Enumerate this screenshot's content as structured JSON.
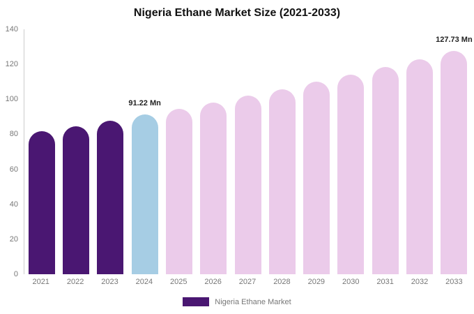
{
  "chart_data": {
    "type": "bar",
    "title": "Nigeria Ethane Market Size (2021-2033)",
    "categories": [
      "2021",
      "2022",
      "2023",
      "2024",
      "2025",
      "2026",
      "2027",
      "2028",
      "2029",
      "2030",
      "2031",
      "2032",
      "2033"
    ],
    "values": [
      81.6,
      84.7,
      87.9,
      91.22,
      94.7,
      98.3,
      102.0,
      105.9,
      109.9,
      114.1,
      118.5,
      123.0,
      127.73
    ],
    "unit": "Mn",
    "ylim": [
      0,
      140
    ],
    "yticks": [
      0,
      20,
      40,
      60,
      80,
      100,
      120,
      140
    ],
    "grid": false,
    "legend_position": "bottom",
    "colors": [
      "#4A1772",
      "#4A1772",
      "#4A1772",
      "#A6CDE4",
      "#EBCBEA",
      "#EBCBEA",
      "#EBCBEA",
      "#EBCBEA",
      "#EBCBEA",
      "#EBCBEA",
      "#EBCBEA",
      "#EBCBEA",
      "#EBCBEA"
    ],
    "annotations": [
      {
        "category": "2024",
        "text": "91.22 Mn"
      },
      {
        "category": "2033",
        "text": "127.73 Mn"
      }
    ],
    "legend": [
      {
        "label": "Nigeria Ethane Market",
        "color": "#4A1772"
      }
    ]
  }
}
